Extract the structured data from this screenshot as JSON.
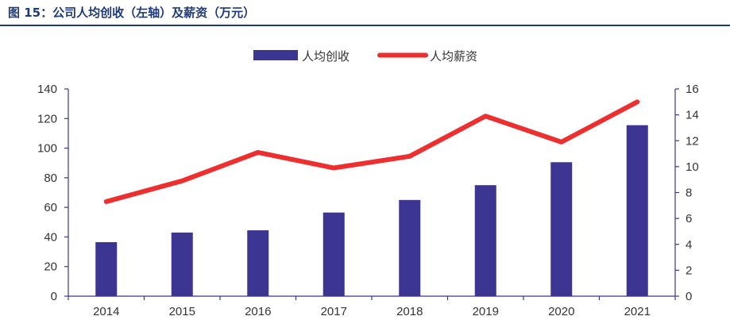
{
  "title": "图 15：公司人均创收（左轴）及薪资（万元）",
  "colors": {
    "bar": "#3c3592",
    "line": "#ee2f2f",
    "axis": "#3c3592",
    "title": "#1f3a78"
  },
  "chart_data": {
    "type": "bar+line",
    "categories": [
      "2014",
      "2015",
      "2016",
      "2017",
      "2018",
      "2019",
      "2020",
      "2021"
    ],
    "series": [
      {
        "name": "人均创收",
        "type": "bar",
        "axis": "left",
        "values": [
          36.5,
          43,
          44.5,
          56.5,
          65,
          75,
          90.5,
          115.5
        ]
      },
      {
        "name": "人均薪资",
        "type": "line",
        "axis": "right",
        "values": [
          7.3,
          8.9,
          11.1,
          9.9,
          10.8,
          13.9,
          11.9,
          15.0
        ]
      }
    ],
    "y_left": {
      "min": 0,
      "max": 140,
      "ticks": [
        0,
        20,
        40,
        60,
        80,
        100,
        120,
        140
      ]
    },
    "y_right": {
      "min": 0,
      "max": 16,
      "ticks": [
        0,
        2,
        4,
        6,
        8,
        10,
        12,
        14,
        16
      ]
    },
    "legend_position": "top-center",
    "grid": false
  }
}
